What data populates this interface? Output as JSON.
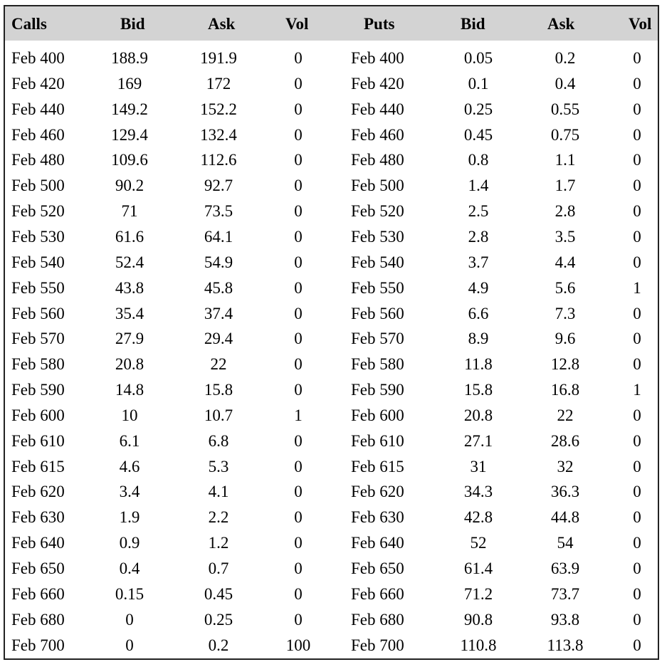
{
  "headers": [
    "Calls",
    "Bid",
    "Ask",
    "Vol",
    "Puts",
    "Bid",
    "Ask",
    "Vol"
  ],
  "rows": [
    [
      "Feb 400",
      "188.9",
      "191.9",
      "0",
      "Feb 400",
      "0.05",
      "0.2",
      "0"
    ],
    [
      "Feb 420",
      "169",
      "172",
      "0",
      "Feb 420",
      "0.1",
      "0.4",
      "0"
    ],
    [
      "Feb 440",
      "149.2",
      "152.2",
      "0",
      "Feb 440",
      "0.25",
      "0.55",
      "0"
    ],
    [
      "Feb 460",
      "129.4",
      "132.4",
      "0",
      "Feb 460",
      "0.45",
      "0.75",
      "0"
    ],
    [
      "Feb 480",
      "109.6",
      "112.6",
      "0",
      "Feb 480",
      "0.8",
      "1.1",
      "0"
    ],
    [
      "Feb 500",
      "90.2",
      "92.7",
      "0",
      "Feb 500",
      "1.4",
      "1.7",
      "0"
    ],
    [
      "Feb 520",
      "71",
      "73.5",
      "0",
      "Feb 520",
      "2.5",
      "2.8",
      "0"
    ],
    [
      "Feb 530",
      "61.6",
      "64.1",
      "0",
      "Feb 530",
      "2.8",
      "3.5",
      "0"
    ],
    [
      "Feb 540",
      "52.4",
      "54.9",
      "0",
      "Feb 540",
      "3.7",
      "4.4",
      "0"
    ],
    [
      "Feb 550",
      "43.8",
      "45.8",
      "0",
      "Feb 550",
      "4.9",
      "5.6",
      "1"
    ],
    [
      "Feb 560",
      "35.4",
      "37.4",
      "0",
      "Feb 560",
      "6.6",
      "7.3",
      "0"
    ],
    [
      "Feb 570",
      "27.9",
      "29.4",
      "0",
      "Feb 570",
      "8.9",
      "9.6",
      "0"
    ],
    [
      "Feb 580",
      "20.8",
      "22",
      "0",
      "Feb 580",
      "11.8",
      "12.8",
      "0"
    ],
    [
      "Feb 590",
      "14.8",
      "15.8",
      "0",
      "Feb 590",
      "15.8",
      "16.8",
      "1"
    ],
    [
      "Feb 600",
      "10",
      "10.7",
      "1",
      "Feb 600",
      "20.8",
      "22",
      "0"
    ],
    [
      "Feb 610",
      "6.1",
      "6.8",
      "0",
      "Feb 610",
      "27.1",
      "28.6",
      "0"
    ],
    [
      "Feb 615",
      "4.6",
      "5.3",
      "0",
      "Feb 615",
      "31",
      "32",
      "0"
    ],
    [
      "Feb 620",
      "3.4",
      "4.1",
      "0",
      "Feb 620",
      "34.3",
      "36.3",
      "0"
    ],
    [
      "Feb 630",
      "1.9",
      "2.2",
      "0",
      "Feb 630",
      "42.8",
      "44.8",
      "0"
    ],
    [
      "Feb 640",
      "0.9",
      "1.2",
      "0",
      "Feb 640",
      "52",
      "54",
      "0"
    ],
    [
      "Feb 650",
      "0.4",
      "0.7",
      "0",
      "Feb 650",
      "61.4",
      "63.9",
      "0"
    ],
    [
      "Feb 660",
      "0.15",
      "0.45",
      "0",
      "Feb 660",
      "71.2",
      "73.7",
      "0"
    ],
    [
      "Feb 680",
      "0",
      "0.25",
      "0",
      "Feb 680",
      "90.8",
      "93.8",
      "0"
    ],
    [
      "Feb 700",
      "0",
      "0.2",
      "100",
      "Feb 700",
      "110.8",
      "113.8",
      "0"
    ]
  ]
}
